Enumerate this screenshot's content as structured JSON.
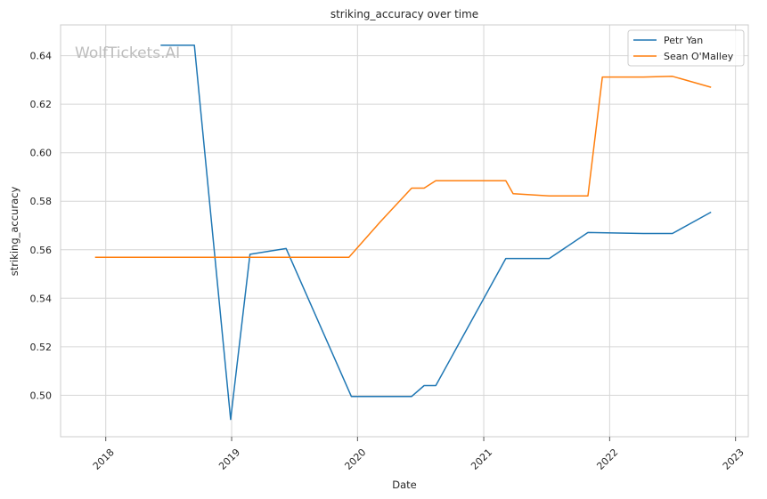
{
  "chart_data": {
    "type": "line",
    "title": "striking_accuracy over time",
    "xlabel": "Date",
    "ylabel": "striking_accuracy",
    "watermark": "WolfTickets.AI",
    "xlim": [
      "2017-08-23",
      "2023-02-07"
    ],
    "ylim": [
      0.4829,
      0.6527
    ],
    "x_ticks": [
      "2018",
      "2019",
      "2020",
      "2021",
      "2022",
      "2023"
    ],
    "y_ticks": [
      "0.50",
      "0.52",
      "0.54",
      "0.56",
      "0.58",
      "0.60",
      "0.62",
      "0.64"
    ],
    "grid": true,
    "legend_position": "top-right",
    "series": [
      {
        "name": "Petr Yan",
        "color": "#1f77b4",
        "points": [
          {
            "x": "2018-06-09",
            "y": 0.6443
          },
          {
            "x": "2018-09-15",
            "y": 0.6443
          },
          {
            "x": "2018-12-29",
            "y": 0.49
          },
          {
            "x": "2019-02-23",
            "y": 0.5581
          },
          {
            "x": "2019-06-08",
            "y": 0.5605
          },
          {
            "x": "2019-12-14",
            "y": 0.4995
          },
          {
            "x": "2020-06-06",
            "y": 0.4995
          },
          {
            "x": "2020-07-12",
            "y": 0.504
          },
          {
            "x": "2020-08-15",
            "y": 0.504
          },
          {
            "x": "2021-03-06",
            "y": 0.5564
          },
          {
            "x": "2021-07-10",
            "y": 0.5564
          },
          {
            "x": "2021-10-30",
            "y": 0.5671
          },
          {
            "x": "2022-04-09",
            "y": 0.5667
          },
          {
            "x": "2022-07-02",
            "y": 0.5667
          },
          {
            "x": "2022-10-22",
            "y": 0.5755
          }
        ]
      },
      {
        "name": "Sean O'Malley",
        "color": "#ff7f0e",
        "points": [
          {
            "x": "2017-12-01",
            "y": 0.5569
          },
          {
            "x": "2019-12-07",
            "y": 0.5569
          },
          {
            "x": "2020-03-07",
            "y": 0.5715
          },
          {
            "x": "2020-06-06",
            "y": 0.5854
          },
          {
            "x": "2020-07-12",
            "y": 0.5854
          },
          {
            "x": "2020-08-15",
            "y": 0.5885
          },
          {
            "x": "2021-03-06",
            "y": 0.5885
          },
          {
            "x": "2021-03-27",
            "y": 0.5831
          },
          {
            "x": "2021-07-10",
            "y": 0.5822
          },
          {
            "x": "2021-10-30",
            "y": 0.5822
          },
          {
            "x": "2021-12-11",
            "y": 0.6312
          },
          {
            "x": "2022-04-09",
            "y": 0.6312
          },
          {
            "x": "2022-07-02",
            "y": 0.6315
          },
          {
            "x": "2022-10-22",
            "y": 0.627
          }
        ]
      }
    ]
  }
}
